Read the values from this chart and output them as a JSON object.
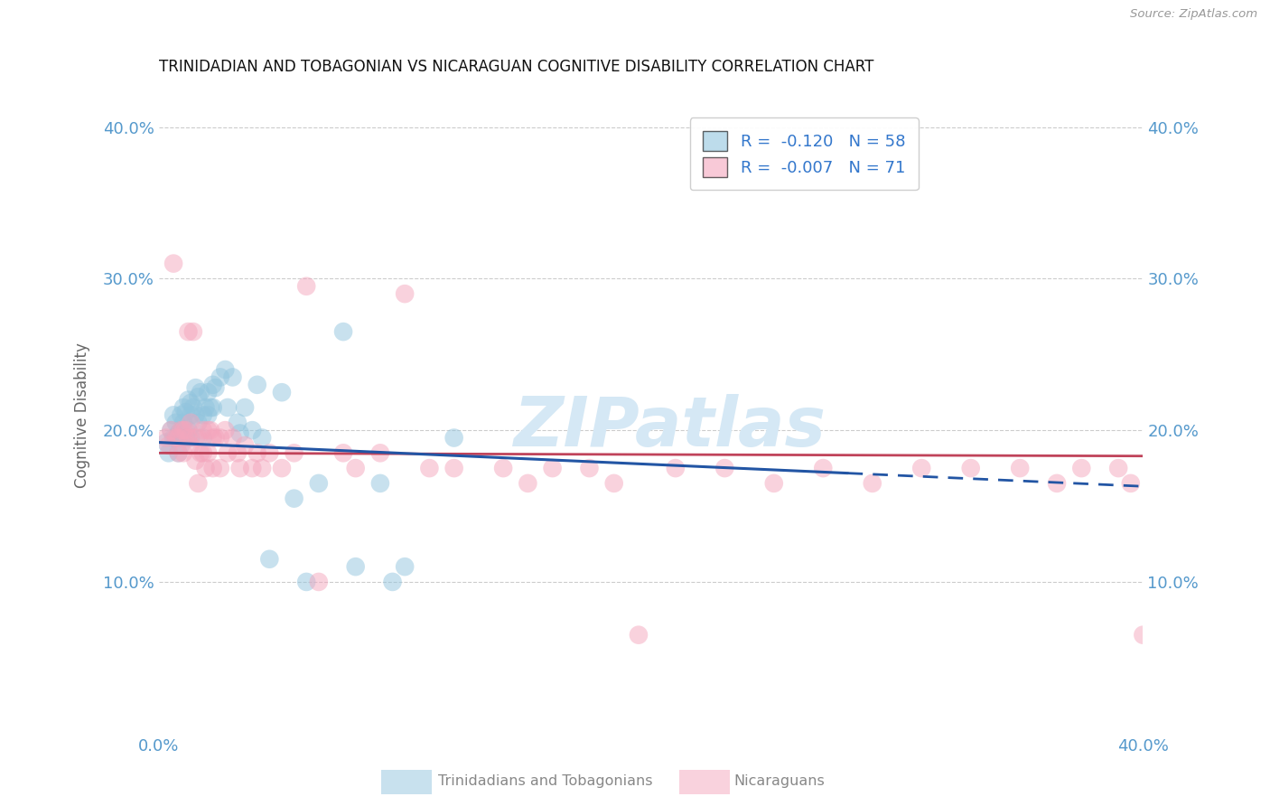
{
  "title": "TRINIDADIAN AND TOBAGONIAN VS NICARAGUAN COGNITIVE DISABILITY CORRELATION CHART",
  "source": "Source: ZipAtlas.com",
  "ylabel": "Cognitive Disability",
  "xlim": [
    0.0,
    0.4
  ],
  "ylim": [
    0.0,
    0.42
  ],
  "ytick_vals": [
    0.1,
    0.2,
    0.3,
    0.4
  ],
  "ytick_labels": [
    "10.0%",
    "20.0%",
    "30.0%",
    "40.0%"
  ],
  "xtick_vals": [
    0.0,
    0.1,
    0.2,
    0.3,
    0.4
  ],
  "xtick_labels": [
    "0.0%",
    "",
    "",
    "",
    "40.0%"
  ],
  "blue_color": "#92c5de",
  "pink_color": "#f4a6bd",
  "trend_blue": "#2255a4",
  "trend_pink": "#c0435a",
  "blue_scatter_x": [
    0.003,
    0.004,
    0.005,
    0.006,
    0.006,
    0.007,
    0.007,
    0.008,
    0.008,
    0.009,
    0.009,
    0.009,
    0.01,
    0.01,
    0.01,
    0.011,
    0.011,
    0.012,
    0.012,
    0.013,
    0.013,
    0.013,
    0.014,
    0.015,
    0.015,
    0.016,
    0.016,
    0.017,
    0.018,
    0.018,
    0.019,
    0.02,
    0.02,
    0.021,
    0.022,
    0.022,
    0.023,
    0.025,
    0.027,
    0.028,
    0.03,
    0.032,
    0.033,
    0.035,
    0.038,
    0.04,
    0.042,
    0.045,
    0.05,
    0.055,
    0.06,
    0.065,
    0.075,
    0.08,
    0.09,
    0.095,
    0.1,
    0.12
  ],
  "blue_scatter_y": [
    0.192,
    0.185,
    0.2,
    0.21,
    0.195,
    0.205,
    0.195,
    0.185,
    0.198,
    0.21,
    0.2,
    0.19,
    0.215,
    0.205,
    0.195,
    0.212,
    0.195,
    0.22,
    0.2,
    0.218,
    0.21,
    0.195,
    0.215,
    0.228,
    0.21,
    0.222,
    0.205,
    0.225,
    0.21,
    0.195,
    0.215,
    0.225,
    0.21,
    0.215,
    0.23,
    0.215,
    0.228,
    0.235,
    0.24,
    0.215,
    0.235,
    0.205,
    0.198,
    0.215,
    0.2,
    0.23,
    0.195,
    0.115,
    0.225,
    0.155,
    0.1,
    0.165,
    0.265,
    0.11,
    0.165,
    0.1,
    0.11,
    0.195
  ],
  "pink_scatter_x": [
    0.003,
    0.004,
    0.005,
    0.006,
    0.007,
    0.008,
    0.008,
    0.009,
    0.01,
    0.01,
    0.011,
    0.012,
    0.012,
    0.013,
    0.013,
    0.014,
    0.015,
    0.015,
    0.016,
    0.016,
    0.017,
    0.018,
    0.018,
    0.019,
    0.02,
    0.02,
    0.021,
    0.022,
    0.022,
    0.023,
    0.025,
    0.025,
    0.027,
    0.028,
    0.03,
    0.032,
    0.033,
    0.035,
    0.038,
    0.04,
    0.042,
    0.045,
    0.05,
    0.055,
    0.06,
    0.065,
    0.075,
    0.08,
    0.09,
    0.1,
    0.11,
    0.12,
    0.14,
    0.15,
    0.16,
    0.175,
    0.185,
    0.195,
    0.21,
    0.23,
    0.25,
    0.27,
    0.29,
    0.31,
    0.33,
    0.35,
    0.365,
    0.375,
    0.39,
    0.395,
    0.4
  ],
  "pink_scatter_y": [
    0.195,
    0.19,
    0.2,
    0.31,
    0.195,
    0.195,
    0.185,
    0.2,
    0.2,
    0.185,
    0.2,
    0.265,
    0.195,
    0.205,
    0.19,
    0.265,
    0.195,
    0.18,
    0.195,
    0.165,
    0.185,
    0.2,
    0.185,
    0.175,
    0.2,
    0.185,
    0.2,
    0.195,
    0.175,
    0.195,
    0.195,
    0.175,
    0.2,
    0.185,
    0.195,
    0.185,
    0.175,
    0.19,
    0.175,
    0.185,
    0.175,
    0.185,
    0.175,
    0.185,
    0.295,
    0.1,
    0.185,
    0.175,
    0.185,
    0.29,
    0.175,
    0.175,
    0.175,
    0.165,
    0.175,
    0.175,
    0.165,
    0.065,
    0.175,
    0.175,
    0.165,
    0.175,
    0.165,
    0.175,
    0.175,
    0.175,
    0.165,
    0.175,
    0.175,
    0.165,
    0.065
  ],
  "blue_line_x_start": 0.0,
  "blue_line_x_solid_end": 0.28,
  "blue_line_x_dash_end": 0.4,
  "blue_line_y_start": 0.192,
  "blue_line_y_end": 0.163,
  "pink_line_y_start": 0.185,
  "pink_line_y_end": 0.183
}
